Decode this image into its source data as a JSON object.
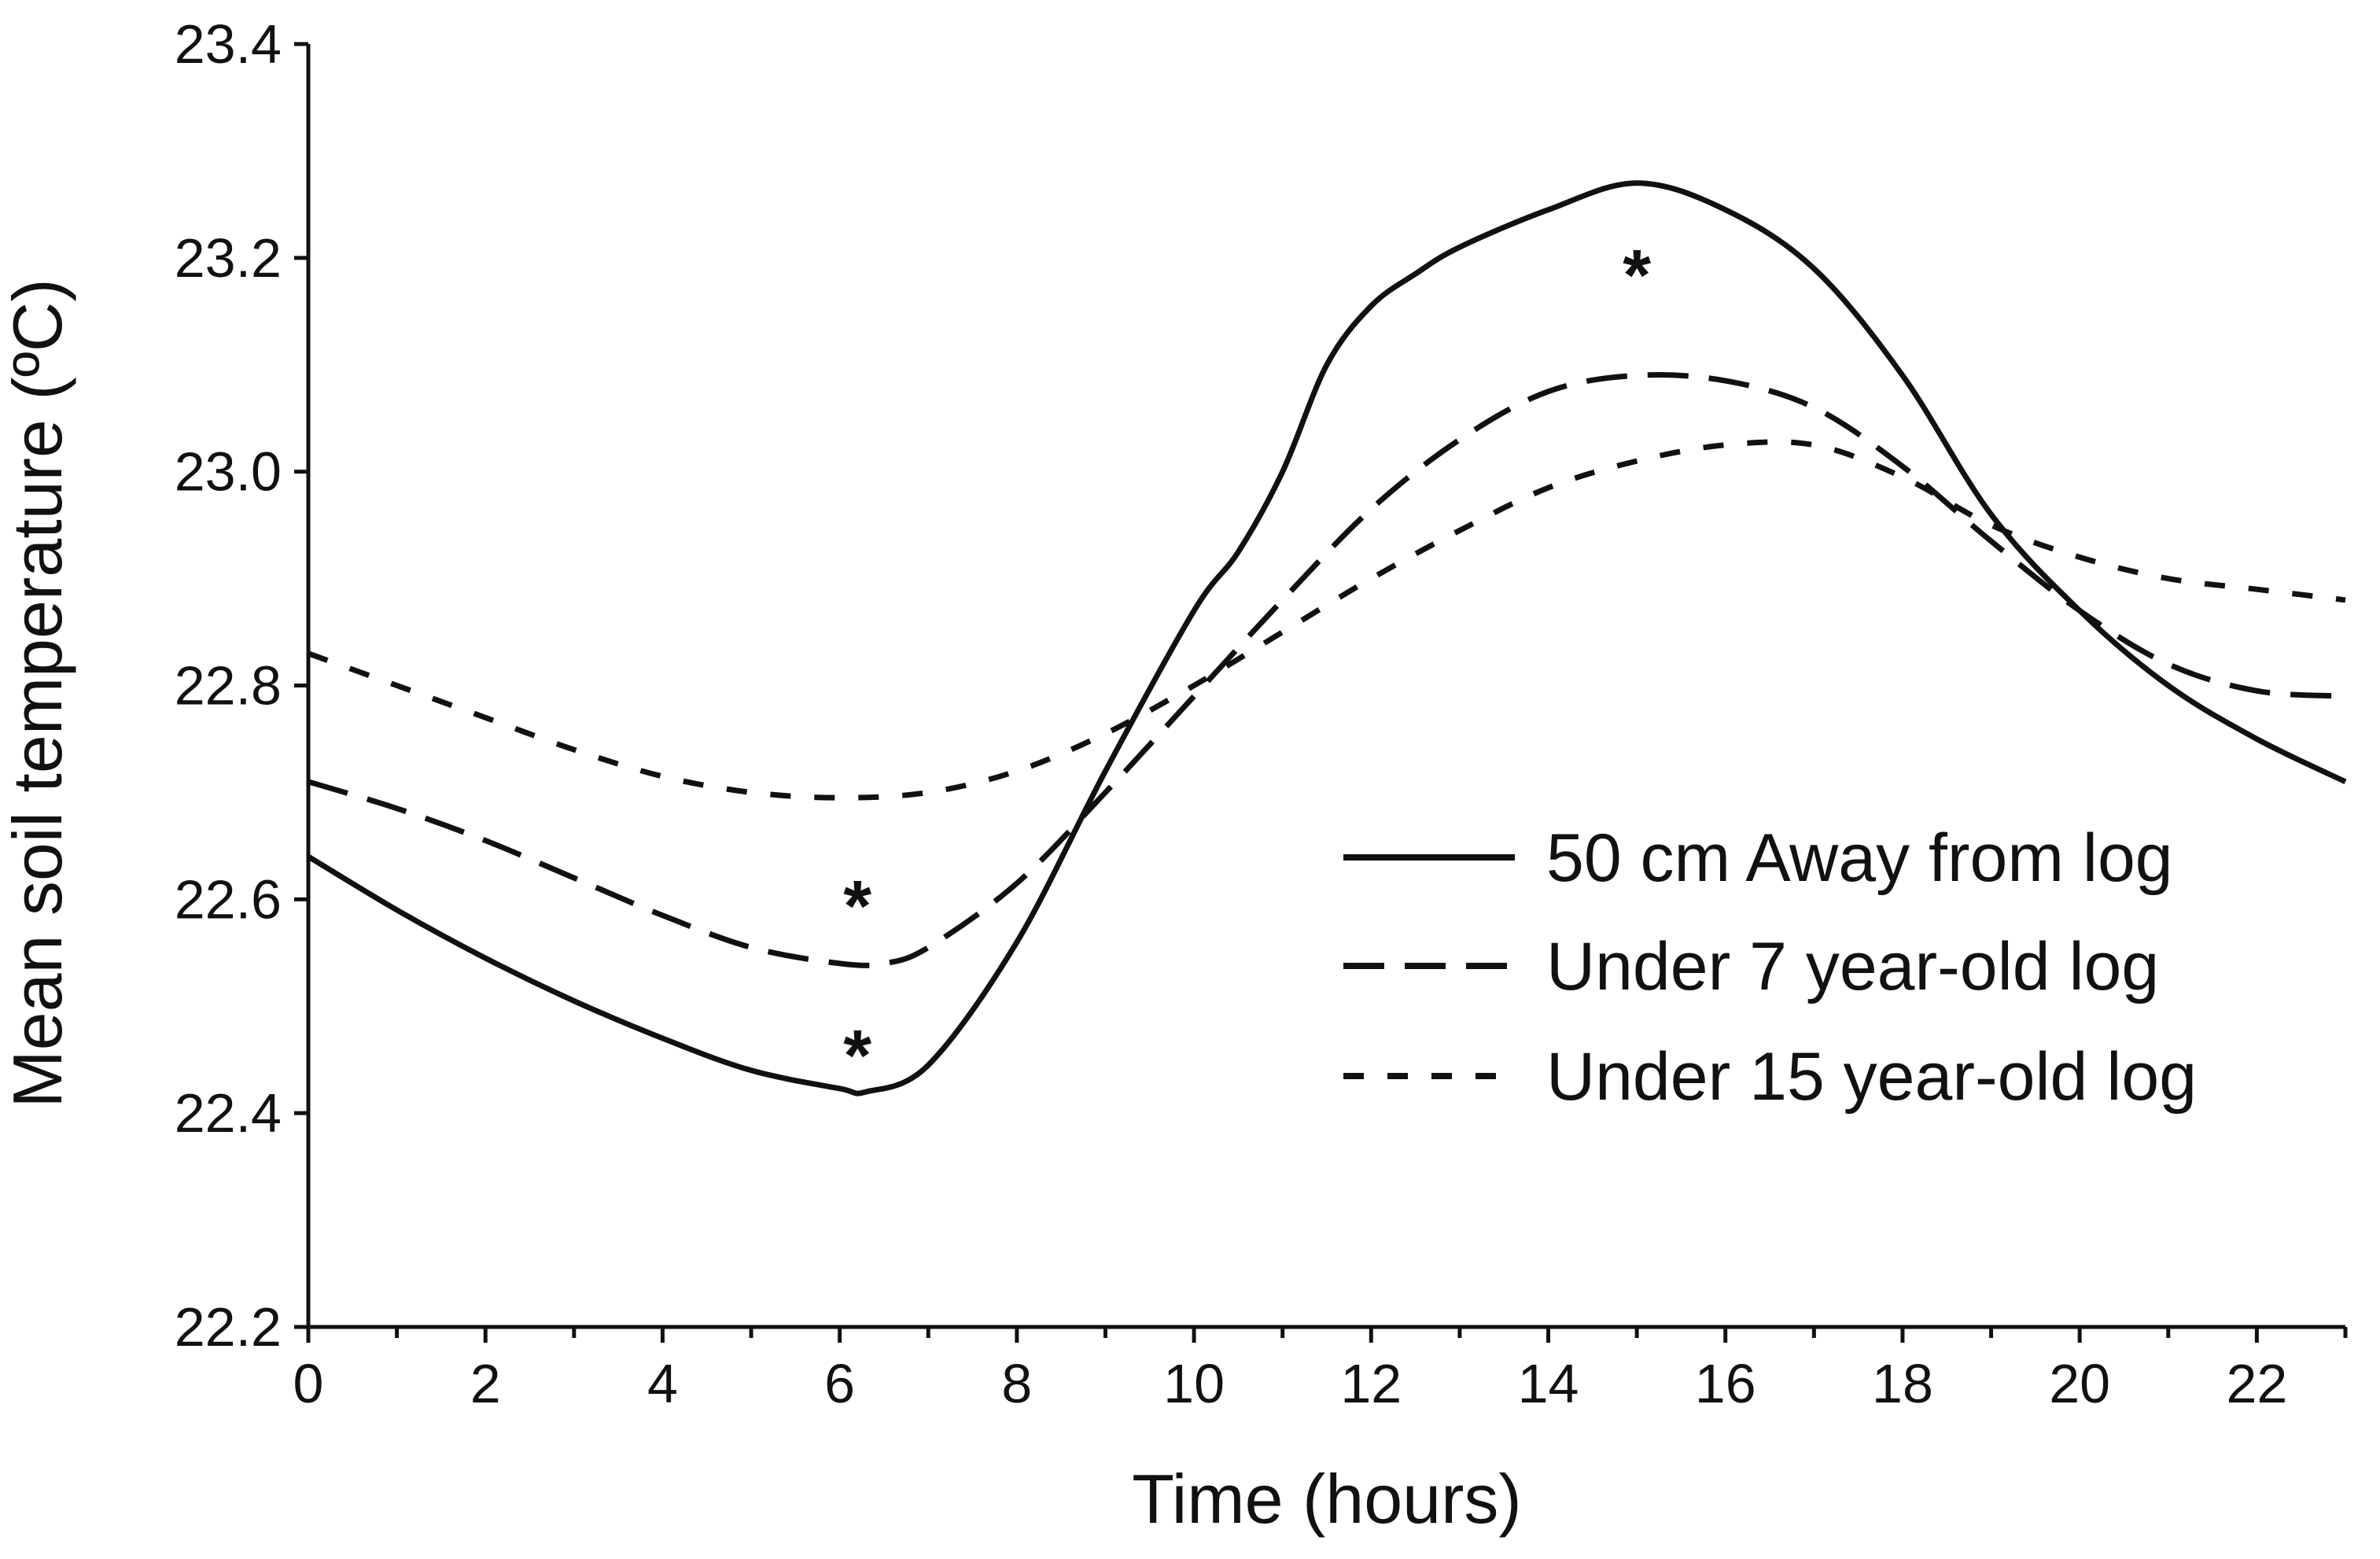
{
  "chart_data": {
    "type": "line",
    "title": "",
    "xlabel": "Time (hours)",
    "ylabel": "Mean soil temperature (ºC)",
    "xlim": [
      0,
      23
    ],
    "ylim": [
      22.2,
      23.4
    ],
    "x_ticks": [
      0,
      2,
      4,
      6,
      8,
      10,
      12,
      14,
      16,
      18,
      20,
      22
    ],
    "x_minor_ticks": [
      1,
      3,
      5,
      7,
      9,
      11,
      13,
      15,
      17,
      19,
      21,
      23
    ],
    "y_ticks": [
      "22.2",
      "22.4",
      "22.6",
      "22.8",
      "23.0",
      "23.2",
      "23.4"
    ],
    "grid": false,
    "legend_position": "center-right",
    "series": [
      {
        "name": "50 cm Away from log",
        "style": "solid",
        "x": [
          0,
          1,
          2,
          3,
          4,
          5,
          6,
          6.3,
          7,
          8,
          9,
          10,
          10.5,
          11,
          11.5,
          12,
          12.5,
          13,
          14,
          15,
          16,
          17,
          18,
          19,
          20,
          21,
          22,
          23
        ],
        "values": [
          22.64,
          22.59,
          22.545,
          22.505,
          22.47,
          22.44,
          22.423,
          22.42,
          22.445,
          22.56,
          22.72,
          22.87,
          22.925,
          23.0,
          23.1,
          23.155,
          23.185,
          23.21,
          23.245,
          23.27,
          23.245,
          23.19,
          23.09,
          22.96,
          22.87,
          22.8,
          22.75,
          22.71
        ]
      },
      {
        "name": "Under 7 year-old log",
        "style": "dashed",
        "x": [
          0,
          1,
          2,
          3,
          4,
          5,
          6,
          6.5,
          7,
          8,
          9,
          10,
          11,
          12,
          13,
          14,
          15,
          16,
          17,
          18,
          19,
          20,
          21,
          22,
          23
        ],
        "values": [
          22.71,
          22.685,
          22.655,
          22.62,
          22.585,
          22.555,
          22.54,
          22.54,
          22.555,
          22.615,
          22.7,
          22.79,
          22.88,
          22.965,
          23.03,
          23.075,
          23.09,
          23.085,
          23.06,
          23.005,
          22.935,
          22.87,
          22.82,
          22.795,
          22.79
        ]
      },
      {
        "name": "Under 15 year-old log",
        "style": "dotted",
        "x": [
          0,
          1,
          2,
          3,
          4,
          5,
          6,
          7,
          8,
          9,
          10,
          11,
          12,
          13,
          14,
          15,
          16,
          17,
          18,
          19,
          20,
          21,
          22,
          23
        ],
        "values": [
          22.83,
          22.8,
          22.77,
          22.74,
          22.715,
          22.7,
          22.695,
          22.7,
          22.72,
          22.755,
          22.8,
          22.85,
          22.9,
          22.945,
          22.985,
          23.01,
          23.025,
          23.025,
          22.995,
          22.95,
          22.92,
          22.9,
          22.89,
          22.88
        ]
      }
    ],
    "annotations": [
      {
        "text": "*",
        "x": 6.2,
        "y": 22.6
      },
      {
        "text": "*",
        "x": 6.2,
        "y": 22.46
      },
      {
        "text": "*",
        "x": 15.0,
        "y": 23.19
      }
    ]
  }
}
